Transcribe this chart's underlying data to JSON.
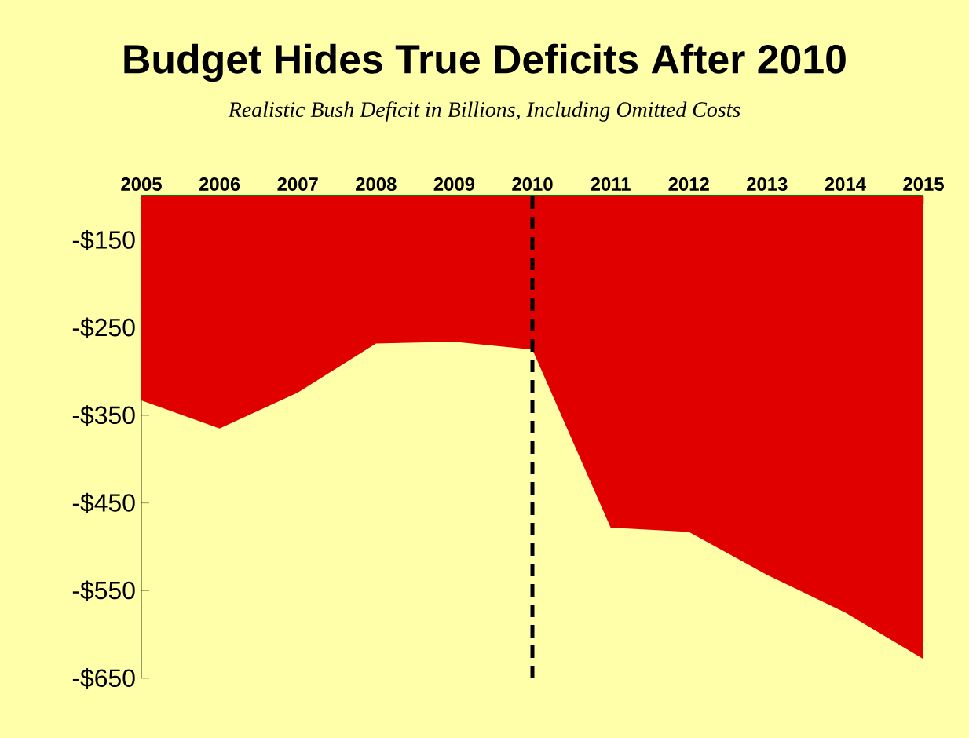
{
  "chart_data": {
    "type": "area",
    "title": "Budget Hides True Deficits After 2010",
    "subtitle": "Realistic Bush Deficit in Billions, Including Omitted Costs",
    "categories": [
      "2005",
      "2006",
      "2007",
      "2008",
      "2009",
      "2010",
      "2011",
      "2012",
      "2013",
      "2014",
      "2015"
    ],
    "values": [
      -333,
      -365,
      -324,
      -268,
      -266,
      -275,
      -478,
      -483,
      -532,
      -575,
      -628
    ],
    "color": "#e00000",
    "ylim": [
      -650,
      -100
    ],
    "yticks": [
      {
        "value": -150,
        "label": "-$150"
      },
      {
        "value": -250,
        "label": "-$250"
      },
      {
        "value": -350,
        "label": "-$350"
      },
      {
        "value": -450,
        "label": "-$450"
      },
      {
        "value": -550,
        "label": "-$550"
      },
      {
        "value": -650,
        "label": "-$650"
      }
    ],
    "ref_lines": [
      {
        "axis": "x",
        "value": "2010",
        "color": "#000000",
        "line_style": "dashed"
      }
    ]
  }
}
